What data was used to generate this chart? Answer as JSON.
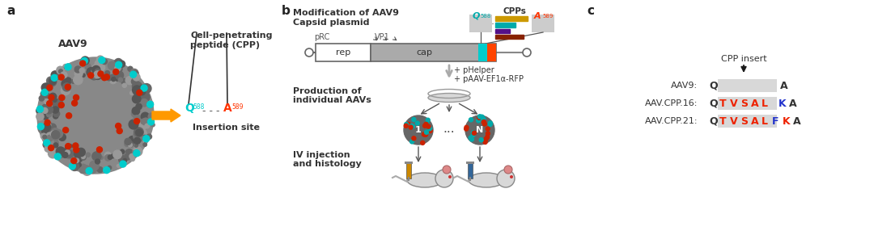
{
  "bg_color": "#ffffff",
  "panel_a_label": "a",
  "panel_b_label": "b",
  "panel_c_label": "c",
  "aav9_label": "AAV9",
  "cpp_label": "Cell-penetrating\npeptide (CPP)",
  "insertion_label": "Insertion site",
  "mod_title1": "Modification of AAV9",
  "mod_title2": "Capsid plasmid",
  "cpps_label": "CPPs",
  "rep_label": "rep",
  "cap_label": "cap",
  "pRC_label": "pRC",
  "VP1_label": "VP1",
  "pHelper_label": "+ pHelper",
  "pAAV_label": "+ pAAV-EF1α-RFP",
  "prod_label1": "Production of",
  "prod_label2": "individual AAVs",
  "iv_label1": "IV injection",
  "iv_label2": "and histology",
  "cpp_insert_label": "CPP insert",
  "aav9_row_label": "AAV9:",
  "cpp16_row_label": "AAV.CPP.16:",
  "cpp21_row_label": "AAV.CPP.21:",
  "cpp16_letters": [
    "Q",
    "T",
    "V",
    "S",
    "A",
    "L",
    "",
    "K",
    "A"
  ],
  "cpp16_colors": [
    "#333333",
    "#ee2200",
    "#ee2200",
    "#ee2200",
    "#ee2200",
    "#ee2200",
    "",
    "#2233cc",
    "#333333"
  ],
  "cpp21_letters": [
    "Q",
    "T",
    "V",
    "S",
    "A",
    "L",
    "F",
    "K",
    "A"
  ],
  "cpp21_colors": [
    "#333333",
    "#ee2200",
    "#ee2200",
    "#ee2200",
    "#ee2200",
    "#ee2200",
    "#2233cc",
    "#ee2200",
    "#333333"
  ],
  "cyan_color": "#00cccc",
  "red_color": "#ff3300",
  "orange_color": "#ff9900",
  "dark_color": "#333333",
  "gray_color": "#aaaaaa",
  "light_gray": "#dddddd"
}
